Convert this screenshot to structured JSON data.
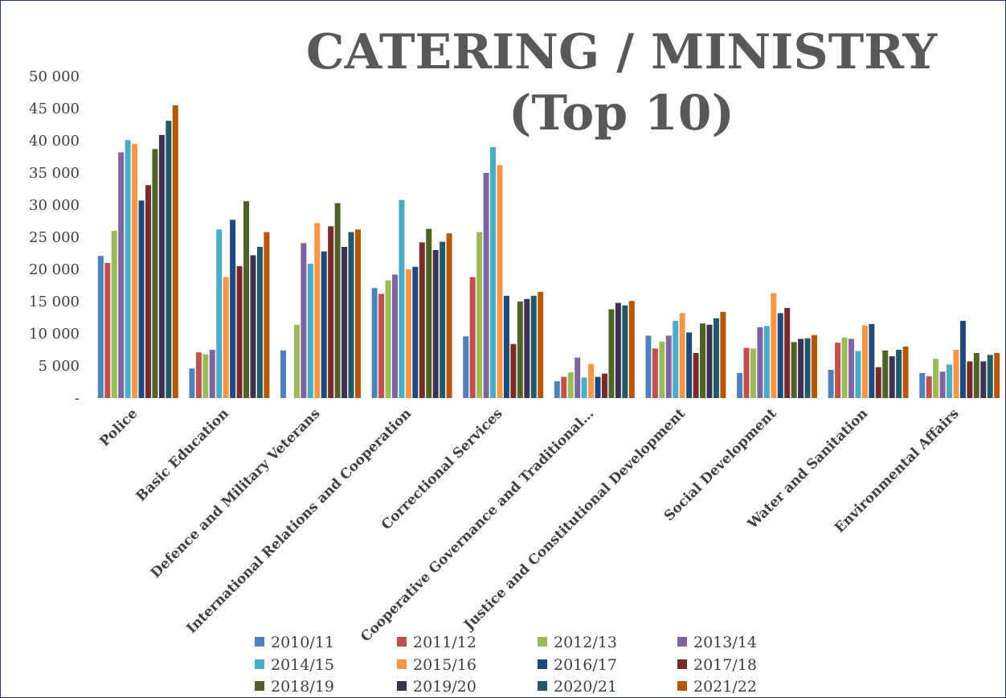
{
  "chart_data": {
    "type": "bar",
    "title": "CATERING / MINISTRY (Top 10)",
    "categories": [
      "Police",
      "Basic Education",
      "Defence and Military Veterans",
      "International Relations and Cooperation",
      "Correctional Services",
      "Cooperative Governance and Traditional…",
      "Justice and Constitutional Development",
      "Social Development",
      "Water and Sanitation",
      "Environmental Affairs"
    ],
    "series": [
      {
        "name": "2010/11",
        "color": "#4f81bd",
        "values": [
          22100,
          4600,
          7400,
          17100,
          9600,
          2600,
          9700,
          3900,
          4400,
          3900
        ]
      },
      {
        "name": "2011/12",
        "color": "#c0504d",
        "values": [
          21000,
          7100,
          0,
          16200,
          18800,
          3300,
          7700,
          7800,
          8600,
          3400
        ]
      },
      {
        "name": "2012/13",
        "color": "#9bbb59",
        "values": [
          26000,
          6800,
          11400,
          18300,
          25800,
          4000,
          8800,
          7700,
          9400,
          6100
        ]
      },
      {
        "name": "2013/14",
        "color": "#8064a2",
        "values": [
          38200,
          7500,
          24100,
          19200,
          35000,
          6300,
          9700,
          11000,
          9200,
          4100
        ]
      },
      {
        "name": "2014/15",
        "color": "#4bacc6",
        "values": [
          40100,
          26200,
          20900,
          30800,
          39000,
          3200,
          12000,
          11200,
          7300,
          5200
        ]
      },
      {
        "name": "2015/16",
        "color": "#f79646",
        "values": [
          39500,
          18800,
          27200,
          20000,
          36200,
          5300,
          13200,
          16300,
          11300,
          7500
        ]
      },
      {
        "name": "2016/17",
        "color": "#1f497d",
        "values": [
          30700,
          27700,
          22800,
          20400,
          15900,
          3300,
          10200,
          13200,
          11500,
          12000
        ]
      },
      {
        "name": "2017/18",
        "color": "#772c2a",
        "values": [
          33100,
          20500,
          26700,
          24200,
          8400,
          3800,
          7000,
          14000,
          4800,
          5700
        ]
      },
      {
        "name": "2018/19",
        "color": "#4f6228",
        "values": [
          38700,
          30600,
          30300,
          26300,
          15000,
          13800,
          11600,
          8700,
          7400,
          7000
        ]
      },
      {
        "name": "2019/20",
        "color": "#3f3151",
        "values": [
          40900,
          22200,
          23500,
          23000,
          15400,
          14800,
          11400,
          9200,
          6500,
          5700
        ]
      },
      {
        "name": "2020/21",
        "color": "#215968",
        "values": [
          43100,
          23500,
          25800,
          24300,
          15900,
          14400,
          12400,
          9300,
          7500,
          6700
        ]
      },
      {
        "name": "2021/22",
        "color": "#b65708",
        "values": [
          45500,
          25800,
          26200,
          25600,
          16500,
          15100,
          13400,
          9800,
          8000,
          7000
        ]
      }
    ],
    "ylim": [
      0,
      50000
    ],
    "yticks": [
      {
        "value": 0,
        "label": "-"
      },
      {
        "value": 5000,
        "label": "5 000"
      },
      {
        "value": 10000,
        "label": "10 000"
      },
      {
        "value": 15000,
        "label": "15 000"
      },
      {
        "value": 20000,
        "label": "20 000"
      },
      {
        "value": 25000,
        "label": "25 000"
      },
      {
        "value": 30000,
        "label": "30 000"
      },
      {
        "value": 35000,
        "label": "35 000"
      },
      {
        "value": 40000,
        "label": "40 000"
      },
      {
        "value": 45000,
        "label": "45 000"
      },
      {
        "value": 50000,
        "label": "50 000"
      }
    ],
    "grid": false,
    "legend": "bottom"
  }
}
